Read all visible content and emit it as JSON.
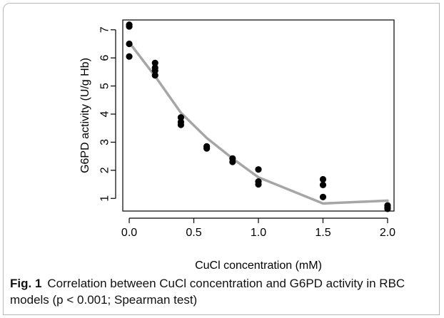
{
  "figure": {
    "label": "Fig. 1",
    "caption": "Correlation between CuCl concentration and G6PD activity in RBC models (p < 0.001; Spearman test)"
  },
  "chart_data": {
    "type": "scatter",
    "title": "",
    "xlabel": "CuCl concentration (mM)",
    "ylabel": "G6PD activity (U/g Hb)",
    "xlim": [
      -0.05,
      2.05
    ],
    "ylim": [
      0.55,
      7.35
    ],
    "xticks": [
      0.0,
      0.5,
      1.0,
      1.5,
      2.0
    ],
    "xtick_labels": [
      "0.0",
      "0.5",
      "1.0",
      "1.5",
      "2.0"
    ],
    "yticks": [
      1,
      2,
      3,
      4,
      5,
      6,
      7
    ],
    "ytick_labels": [
      "1",
      "2",
      "3",
      "4",
      "5",
      "6",
      "7"
    ],
    "grid": false,
    "legend": "none",
    "point_color": "#000000",
    "line_color": "#a6a6a6",
    "series": [
      {
        "kind": "points",
        "points": [
          [
            0.0,
            7.18
          ],
          [
            0.0,
            7.12
          ],
          [
            0.0,
            6.5
          ],
          [
            0.0,
            6.05
          ],
          [
            0.2,
            5.82
          ],
          [
            0.2,
            5.65
          ],
          [
            0.2,
            5.55
          ],
          [
            0.2,
            5.38
          ],
          [
            0.4,
            3.88
          ],
          [
            0.4,
            3.72
          ],
          [
            0.4,
            3.62
          ],
          [
            0.6,
            2.85
          ],
          [
            0.6,
            2.78
          ],
          [
            0.8,
            2.42
          ],
          [
            0.8,
            2.3
          ],
          [
            1.0,
            2.03
          ],
          [
            1.0,
            1.6
          ],
          [
            1.0,
            1.5
          ],
          [
            1.5,
            1.68
          ],
          [
            1.5,
            1.48
          ],
          [
            1.5,
            1.05
          ],
          [
            2.0,
            0.75
          ],
          [
            2.0,
            0.68
          ],
          [
            2.0,
            0.63
          ]
        ]
      },
      {
        "kind": "smooth-line",
        "points": [
          [
            0.0,
            6.55
          ],
          [
            0.2,
            5.35
          ],
          [
            0.4,
            4.05
          ],
          [
            0.6,
            3.15
          ],
          [
            0.8,
            2.42
          ],
          [
            1.0,
            1.75
          ],
          [
            1.5,
            0.82
          ],
          [
            2.0,
            0.92
          ]
        ]
      }
    ]
  }
}
